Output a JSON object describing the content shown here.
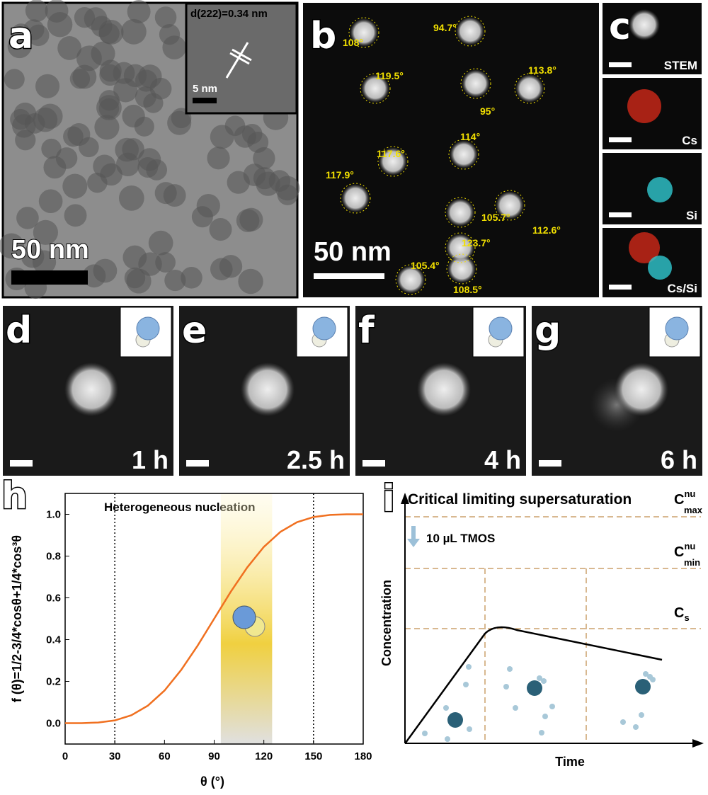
{
  "panels": {
    "a": {
      "label": "a",
      "inset_text": "d(222)=0.34 nm",
      "inset_scale": "5 nm",
      "scale": "50 nm"
    },
    "b": {
      "label": "b",
      "scale": "50 nm",
      "angles": [
        "108°",
        "94.7°",
        "119.5°",
        "113.8°",
        "95°",
        "117.6°",
        "114°",
        "117.9°",
        "105.7°",
        "112.6°",
        "123.7°",
        "105.4°",
        "108.5°"
      ]
    },
    "c": {
      "label": "c",
      "maps": [
        "STEM",
        "Cs",
        "Si",
        "Cs/Si"
      ]
    },
    "d": {
      "label": "d",
      "time": "1 h"
    },
    "e": {
      "label": "e",
      "time": "2.5 h"
    },
    "f": {
      "label": "f",
      "time": "4 h"
    },
    "g": {
      "label": "g",
      "time": "6 h"
    },
    "i": {
      "label": "i",
      "title": "Critical limiting supersaturation",
      "c_max": {
        "base": "C",
        "sup": "nu",
        "sub": "max"
      },
      "c_min": {
        "base": "C",
        "sup": "nu",
        "sub": "min"
      },
      "c_s": {
        "base": "C",
        "sub": "s"
      },
      "arrow_text": "10 µL TMOS",
      "y_label": "Concentration",
      "x_label": "Time"
    }
  },
  "chart_data": {
    "type": "line",
    "panel_label": "h",
    "annotation": "Heterogeneous nucleation",
    "x_label": "θ (°)",
    "y_label": "f (θ)=1/2-3/4*cosθ+1/4*cos³θ",
    "x": [
      0,
      10,
      20,
      30,
      40,
      50,
      60,
      70,
      80,
      90,
      100,
      110,
      120,
      130,
      140,
      150,
      160,
      170,
      180
    ],
    "series": [
      {
        "color": "#f07020",
        "values": [
          0,
          0.0002,
          0.003,
          0.013,
          0.038,
          0.084,
          0.156,
          0.254,
          0.371,
          0.5,
          0.629,
          0.746,
          0.844,
          0.916,
          0.962,
          0.987,
          0.997,
          1,
          1
        ]
      }
    ],
    "xlim": [
      0,
      180
    ],
    "ylim": [
      -0.1,
      1.1
    ],
    "xticks": [
      0,
      30,
      60,
      90,
      120,
      150,
      180
    ],
    "yticks": [
      {
        "value": 0,
        "label": "0.0"
      },
      {
        "value": 0.2,
        "label": "0.2"
      },
      {
        "value": 0.4,
        "label": "0.4"
      },
      {
        "value": 0.6,
        "label": "0.6"
      },
      {
        "value": 0.8,
        "label": "0.8"
      },
      {
        "value": 1,
        "label": "1.0"
      }
    ],
    "vlines": [
      30,
      150
    ],
    "band": [
      94,
      125
    ]
  }
}
